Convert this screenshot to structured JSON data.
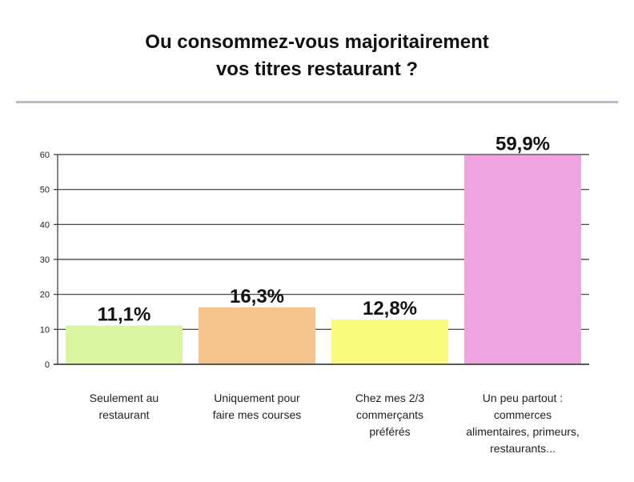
{
  "title_lines": [
    "Ou consommez-vous majoritairement",
    "vos titres restaurant ?"
  ],
  "chart_data": {
    "type": "bar",
    "title": "Ou consommez-vous majoritairement vos titres restaurant ?",
    "categories": [
      "Seulement au restaurant",
      "Uniquement pour faire mes courses",
      "Chez mes 2/3 commerçants préférés",
      "Un peu partout : commerces alimentaires, primeurs, restaurants..."
    ],
    "category_label_lines": [
      [
        "Seulement au",
        "restaurant"
      ],
      [
        "Uniquement pour",
        "faire mes courses"
      ],
      [
        "Chez mes 2/3",
        "commerçants",
        "préférés"
      ],
      [
        "Un peu partout :",
        "commerces",
        "alimentaires, primeurs,",
        "restaurants..."
      ]
    ],
    "values": [
      11.1,
      16.3,
      12.8,
      59.9
    ],
    "data_labels": [
      "11,1%",
      "16,3%",
      "12,8%",
      "59,9%"
    ],
    "colors": [
      "#d9f5a0",
      "#f5c48c",
      "#fafa7c",
      "#eea4e0"
    ],
    "xlabel": "",
    "ylabel": "",
    "ylim": [
      0,
      60
    ],
    "yticks": [
      0,
      10,
      20,
      30,
      40,
      50,
      60
    ],
    "grid": true,
    "legend": "none"
  }
}
